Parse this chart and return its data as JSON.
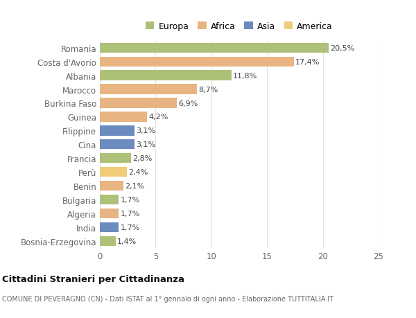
{
  "countries": [
    "Bosnia-Erzegovina",
    "India",
    "Algeria",
    "Bulgaria",
    "Benin",
    "Perù",
    "Francia",
    "Cina",
    "Filippine",
    "Guinea",
    "Burkina Faso",
    "Marocco",
    "Albania",
    "Costa d'Avorio",
    "Romania"
  ],
  "values": [
    1.4,
    1.7,
    1.7,
    1.7,
    2.1,
    2.4,
    2.8,
    3.1,
    3.1,
    4.2,
    6.9,
    8.7,
    11.8,
    17.4,
    20.5
  ],
  "continents": [
    "Europa",
    "Asia",
    "Africa",
    "Europa",
    "Africa",
    "America",
    "Europa",
    "Asia",
    "Asia",
    "Africa",
    "Africa",
    "Africa",
    "Europa",
    "Africa",
    "Europa"
  ],
  "continent_colors": {
    "Europa": "#adc178",
    "Africa": "#e8b482",
    "Asia": "#6b8bbf",
    "America": "#f0cc78"
  },
  "legend_order": [
    "Europa",
    "Africa",
    "Asia",
    "America"
  ],
  "xlim": [
    0,
    25
  ],
  "xticks": [
    0,
    5,
    10,
    15,
    20,
    25
  ],
  "title": "Cittadini Stranieri per Cittadinanza",
  "subtitle": "COMUNE DI PEVERAGNO (CN) - Dati ISTAT al 1° gennaio di ogni anno - Elaborazione TUTTITALIA.IT",
  "background_color": "#ffffff",
  "bar_height": 0.72,
  "grid_color": "#e0e0e0",
  "label_color": "#666666",
  "text_color": "#444444",
  "title_fontsize": 9.5,
  "subtitle_fontsize": 7.0,
  "bar_label_fontsize": 8.0,
  "ytick_fontsize": 8.5,
  "xtick_fontsize": 8.5,
  "legend_fontsize": 9.0
}
